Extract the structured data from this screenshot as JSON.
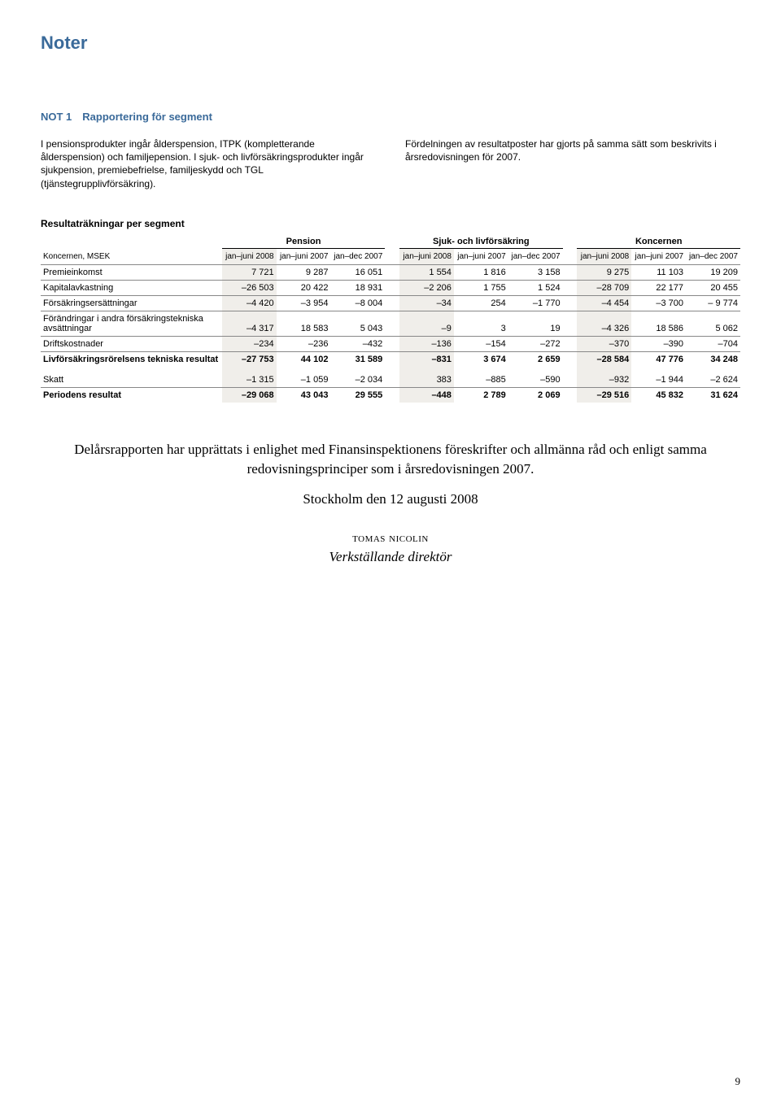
{
  "page_title": "Noter",
  "note_heading": "NOT 1 Rapportering för segment",
  "intro_left": "I pensionsprodukter ingår ålderspension, ITPK (kompletterande ålderspension) och familjepension. I sjuk- och livförsäkringsprodukter ingår sjukpension, premiebefrielse, familjeskydd och TGL (tjänstegrupplivförsäkring).",
  "intro_right": "Fördelningen av resultatposter har gjorts på samma sätt som beskrivits i årsredovisningen för 2007.",
  "table_title": "Resultaträkningar per segment",
  "row_head_label": "Koncernen, MSEK",
  "groups": [
    "Pension",
    "Sjuk- och livförsäkring",
    "Koncernen"
  ],
  "periods": [
    "jan–juni 2008",
    "jan–juni 2007",
    "jan–dec 2007",
    "jan–juni 2008",
    "jan–juni 2007",
    "jan–dec 2007",
    "jan–juni 2008",
    "jan–juni 2007",
    "jan–dec 2007"
  ],
  "highlight_cols": [
    0,
    3,
    6
  ],
  "rows": [
    {
      "label": "Premieinkomst",
      "vals": [
        "7 721",
        "9 287",
        "16 051",
        "1 554",
        "1 816",
        "3 158",
        "9 275",
        "11 103",
        "19 209"
      ],
      "bold": false
    },
    {
      "label": "Kapitalavkastning",
      "vals": [
        "–26 503",
        "20 422",
        "18 931",
        "–2 206",
        "1 755",
        "1 524",
        "–28 709",
        "22 177",
        "20 455"
      ],
      "bold": false
    },
    {
      "label": "Försäkringsersättningar",
      "vals": [
        "–4 420",
        "–3 954",
        "–8 004",
        "–34",
        "254",
        "–1 770",
        "–4 454",
        "–3 700",
        "– 9 774"
      ],
      "bold": false
    },
    {
      "label": "Förändringar i andra försäkringstekniska avsättningar",
      "vals": [
        "–4 317",
        "18 583",
        "5 043",
        "–9",
        "3",
        "19",
        "–4 326",
        "18 586",
        "5 062"
      ],
      "bold": false
    },
    {
      "label": "Driftskostnader",
      "vals": [
        "–234",
        "–236",
        "–432",
        "–136",
        "–154",
        "–272",
        "–370",
        "–390",
        "–704"
      ],
      "bold": false
    },
    {
      "label": "Livförsäkringsrörelsens tekniska resultat",
      "vals": [
        "–27 753",
        "44 102",
        "31 589",
        "–831",
        "3 674",
        "2 659",
        "–28 584",
        "47 776",
        "34 248"
      ],
      "bold": true
    },
    {
      "label": "Skatt",
      "vals": [
        "–1 315",
        "–1 059",
        "–2 034",
        "383",
        "–885",
        "–590",
        "–932",
        "–1 944",
        "–2 624"
      ],
      "bold": false,
      "skatt": true
    },
    {
      "label": "Periodens resultat",
      "vals": [
        "–29 068",
        "43 043",
        "29 555",
        "–448",
        "2 789",
        "2 069",
        "–29 516",
        "45 832",
        "31 624"
      ],
      "bold": true
    }
  ],
  "closing_p1": "Delårsrapporten har upprättats i enlighet med Finansinspektionens föreskrifter och allmänna råd och enligt samma redovisningsprinciper som i årsredovisningen 2007.",
  "closing_p2": "Stockholm den 12 augusti 2008",
  "closing_name": "tomas nicolin",
  "closing_role": "Verkställande direktör",
  "page_number": "9"
}
